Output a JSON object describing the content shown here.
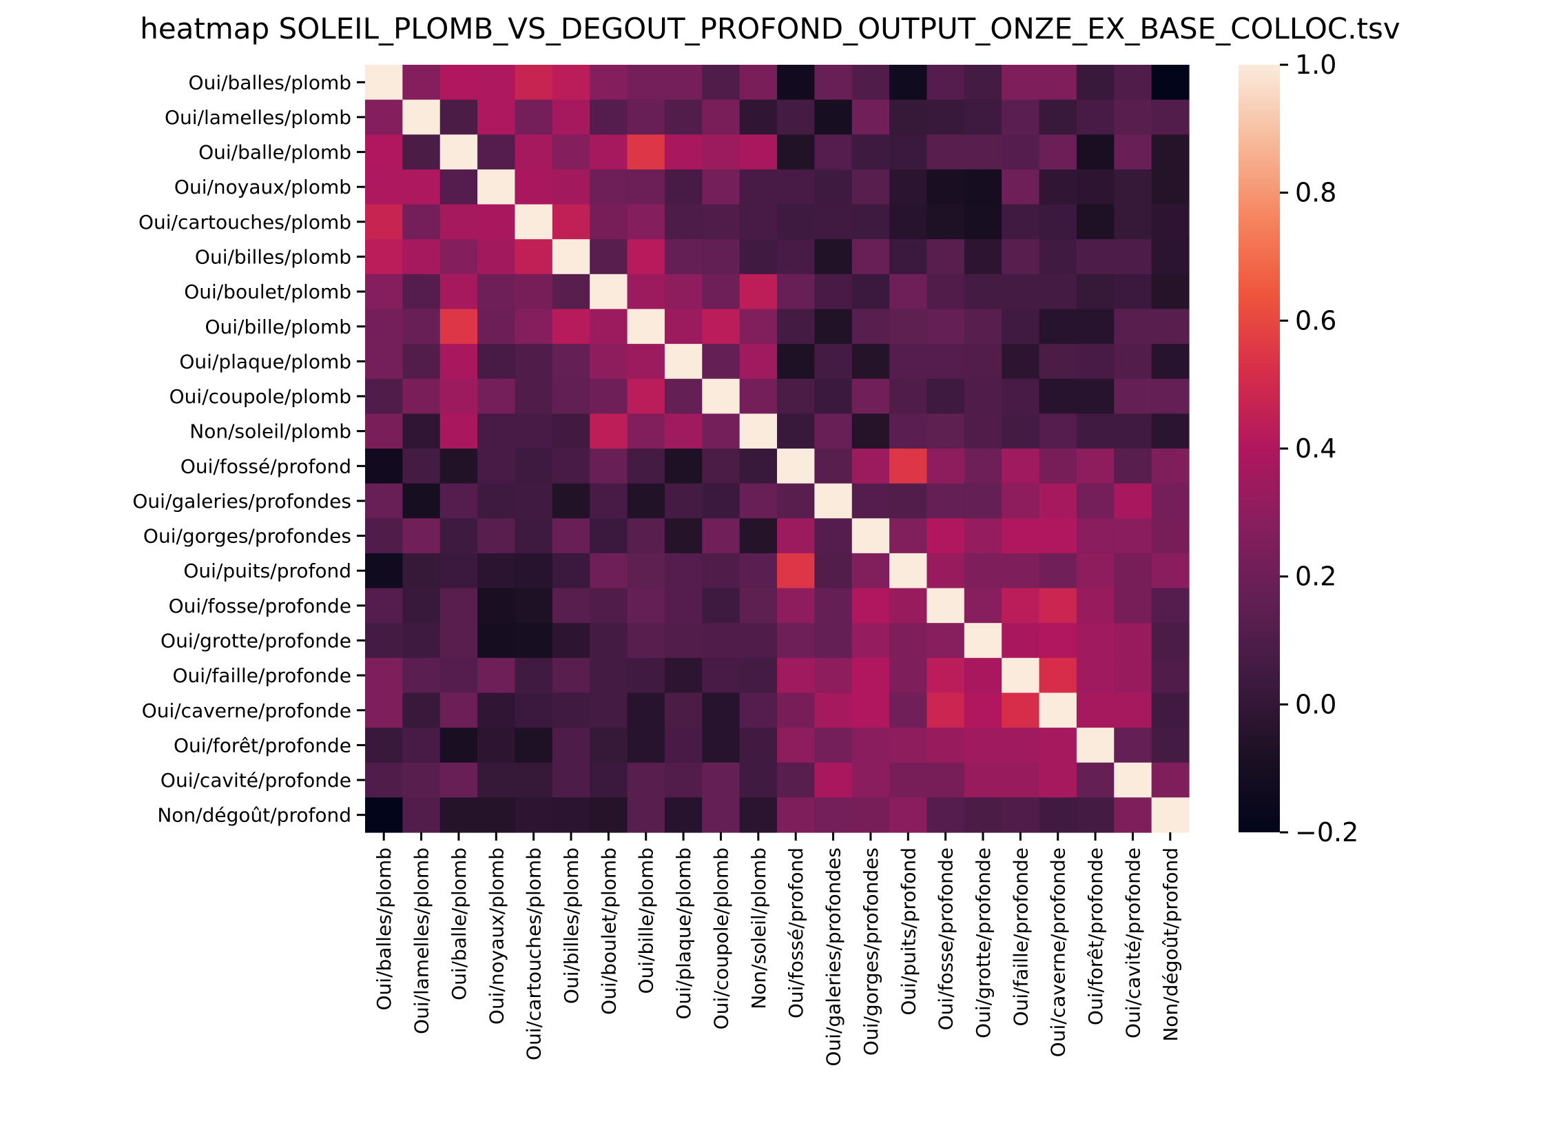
{
  "chart_data": {
    "type": "heatmap",
    "title": "heatmap SOLEIL_PLOMB_VS_DEGOUT_PROFOND_OUTPUT_ONZE_EX_BASE_COLLOC.tsv",
    "labels": [
      "Oui/balles/plomb",
      "Oui/lamelles/plomb",
      "Oui/balle/plomb",
      "Oui/noyaux/plomb",
      "Oui/cartouches/plomb",
      "Oui/billes/plomb",
      "Oui/boulet/plomb",
      "Oui/bille/plomb",
      "Oui/plaque/plomb",
      "Oui/coupole/plomb",
      "Non/soleil/plomb",
      "Oui/fossé/profond",
      "Oui/galeries/profondes",
      "Oui/gorges/profondes",
      "Oui/puits/profond",
      "Oui/fosse/profonde",
      "Oui/grotte/profonde",
      "Oui/faille/profonde",
      "Oui/caverne/profonde",
      "Oui/forêt/profonde",
      "Oui/cavité/profonde",
      "Non/dégoût/profond"
    ],
    "values": [
      [
        1.0,
        0.27,
        0.4,
        0.39,
        0.47,
        0.43,
        0.27,
        0.22,
        0.22,
        0.1,
        0.24,
        -0.13,
        0.18,
        0.1,
        -0.14,
        0.12,
        0.06,
        0.25,
        0.25,
        0.02,
        0.1,
        -0.21
      ],
      [
        0.27,
        1.0,
        0.08,
        0.39,
        0.22,
        0.37,
        0.12,
        0.18,
        0.11,
        0.24,
        -0.01,
        0.06,
        -0.1,
        0.21,
        0.01,
        0.02,
        0.04,
        0.14,
        0.02,
        0.07,
        0.13,
        0.11
      ],
      [
        0.4,
        0.08,
        1.0,
        0.12,
        0.37,
        0.27,
        0.37,
        0.55,
        0.38,
        0.34,
        0.38,
        -0.06,
        0.12,
        0.04,
        0.03,
        0.13,
        0.13,
        0.12,
        0.19,
        -0.09,
        0.18,
        -0.05
      ],
      [
        0.39,
        0.39,
        0.12,
        1.0,
        0.38,
        0.36,
        0.2,
        0.19,
        0.07,
        0.22,
        0.07,
        0.07,
        0.04,
        0.13,
        -0.03,
        -0.09,
        -0.11,
        0.2,
        -0.01,
        -0.02,
        0.01,
        -0.05
      ],
      [
        0.47,
        0.22,
        0.37,
        0.38,
        1.0,
        0.45,
        0.23,
        0.27,
        0.09,
        0.1,
        0.07,
        0.04,
        0.05,
        0.04,
        -0.04,
        -0.07,
        -0.1,
        0.05,
        0.03,
        -0.07,
        0.01,
        -0.02
      ],
      [
        0.43,
        0.37,
        0.27,
        0.36,
        0.45,
        1.0,
        0.13,
        0.42,
        0.17,
        0.16,
        0.05,
        0.07,
        -0.06,
        0.18,
        0.03,
        0.13,
        -0.02,
        0.13,
        0.05,
        0.09,
        0.09,
        -0.03
      ],
      [
        0.27,
        0.12,
        0.37,
        0.2,
        0.23,
        0.13,
        1.0,
        0.34,
        0.3,
        0.2,
        0.44,
        0.18,
        0.07,
        0.03,
        0.2,
        0.1,
        0.06,
        0.06,
        0.06,
        0.01,
        0.03,
        -0.05
      ],
      [
        0.22,
        0.18,
        0.55,
        0.19,
        0.27,
        0.42,
        0.34,
        1.0,
        0.34,
        0.43,
        0.26,
        0.06,
        -0.06,
        0.13,
        0.15,
        0.17,
        0.13,
        0.05,
        -0.04,
        -0.04,
        0.13,
        0.13
      ],
      [
        0.22,
        0.11,
        0.38,
        0.07,
        0.1,
        0.17,
        0.3,
        0.34,
        1.0,
        0.17,
        0.35,
        -0.07,
        0.06,
        -0.05,
        0.12,
        0.12,
        0.11,
        -0.02,
        0.08,
        0.07,
        0.11,
        -0.04
      ],
      [
        0.1,
        0.24,
        0.34,
        0.22,
        0.1,
        0.16,
        0.2,
        0.43,
        0.17,
        1.0,
        0.22,
        0.08,
        0.03,
        0.21,
        0.1,
        0.04,
        0.1,
        0.07,
        -0.04,
        -0.04,
        0.17,
        0.17
      ],
      [
        0.24,
        -0.01,
        0.38,
        0.07,
        0.07,
        0.05,
        0.44,
        0.26,
        0.35,
        0.22,
        1.0,
        0.02,
        0.18,
        -0.05,
        0.14,
        0.15,
        0.1,
        0.06,
        0.12,
        0.05,
        0.05,
        -0.03
      ],
      [
        -0.13,
        0.06,
        -0.06,
        0.07,
        0.04,
        0.07,
        0.18,
        0.06,
        -0.07,
        0.08,
        0.02,
        1.0,
        0.13,
        0.34,
        0.55,
        0.3,
        0.2,
        0.35,
        0.23,
        0.3,
        0.13,
        0.25
      ],
      [
        0.18,
        -0.1,
        0.12,
        0.04,
        0.05,
        -0.06,
        0.07,
        -0.06,
        0.06,
        0.03,
        0.18,
        0.13,
        1.0,
        0.12,
        0.11,
        0.17,
        0.17,
        0.3,
        0.37,
        0.22,
        0.38,
        0.22
      ],
      [
        0.1,
        0.21,
        0.04,
        0.13,
        0.04,
        0.18,
        0.03,
        0.13,
        -0.05,
        0.21,
        -0.05,
        0.34,
        0.12,
        1.0,
        0.26,
        0.4,
        0.32,
        0.4,
        0.4,
        0.29,
        0.29,
        0.23
      ],
      [
        -0.14,
        0.01,
        0.03,
        -0.03,
        -0.04,
        0.03,
        0.2,
        0.15,
        0.12,
        0.1,
        0.14,
        0.55,
        0.11,
        0.26,
        1.0,
        0.33,
        0.25,
        0.25,
        0.21,
        0.3,
        0.23,
        0.29
      ],
      [
        0.12,
        0.02,
        0.13,
        -0.09,
        -0.07,
        0.13,
        0.1,
        0.17,
        0.12,
        0.04,
        0.15,
        0.3,
        0.17,
        0.4,
        0.33,
        1.0,
        0.28,
        0.43,
        0.48,
        0.33,
        0.23,
        0.12
      ],
      [
        0.06,
        0.04,
        0.13,
        -0.11,
        -0.1,
        -0.02,
        0.06,
        0.13,
        0.11,
        0.1,
        0.1,
        0.2,
        0.17,
        0.32,
        0.25,
        0.28,
        1.0,
        0.38,
        0.4,
        0.35,
        0.33,
        0.08
      ],
      [
        0.25,
        0.14,
        0.12,
        0.2,
        0.05,
        0.13,
        0.06,
        0.05,
        -0.02,
        0.07,
        0.06,
        0.35,
        0.3,
        0.4,
        0.25,
        0.43,
        0.38,
        1.0,
        0.52,
        0.35,
        0.33,
        0.1
      ],
      [
        0.25,
        0.02,
        0.19,
        -0.01,
        0.03,
        0.05,
        0.06,
        -0.04,
        0.08,
        -0.04,
        0.12,
        0.23,
        0.37,
        0.4,
        0.21,
        0.48,
        0.4,
        0.52,
        1.0,
        0.37,
        0.37,
        0.05
      ],
      [
        0.02,
        0.07,
        -0.09,
        -0.02,
        -0.07,
        0.09,
        0.01,
        -0.04,
        0.07,
        -0.04,
        0.05,
        0.3,
        0.22,
        0.29,
        0.3,
        0.33,
        0.35,
        0.35,
        0.37,
        1.0,
        0.17,
        0.06
      ],
      [
        0.1,
        0.13,
        0.18,
        0.01,
        0.01,
        0.09,
        0.03,
        0.13,
        0.11,
        0.17,
        0.05,
        0.13,
        0.38,
        0.29,
        0.23,
        0.23,
        0.33,
        0.33,
        0.37,
        0.17,
        1.0,
        0.25
      ],
      [
        -0.21,
        0.11,
        -0.05,
        -0.05,
        -0.02,
        -0.03,
        -0.05,
        0.13,
        -0.04,
        0.17,
        -0.03,
        0.25,
        0.22,
        0.23,
        0.29,
        0.12,
        0.08,
        0.1,
        0.05,
        0.06,
        0.25,
        1.0
      ]
    ],
    "vmin": -0.2,
    "vmax": 1.0,
    "colorbar_ticks": [
      "1.0",
      "0.8",
      "0.6",
      "0.4",
      "0.2",
      "0.0",
      "−0.2"
    ],
    "colormap": "rocket",
    "grid": false
  }
}
